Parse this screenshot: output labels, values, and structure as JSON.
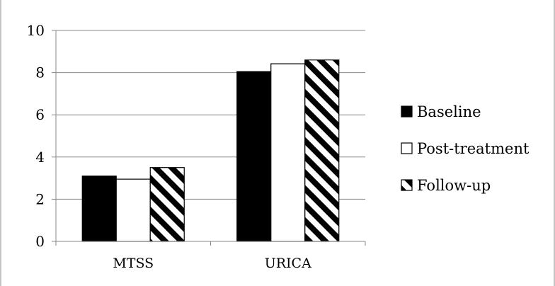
{
  "chart_data": {
    "type": "bar",
    "title": "",
    "xlabel": "",
    "ylabel": "",
    "categories": [
      "MTSS",
      "URICA"
    ],
    "series": [
      {
        "name": "Baseline",
        "values": [
          3.1,
          8.05
        ],
        "fill": "solid-black"
      },
      {
        "name": "Post-treatment",
        "values": [
          2.95,
          8.42
        ],
        "fill": "white"
      },
      {
        "name": "Follow-up",
        "values": [
          3.5,
          8.6
        ],
        "fill": "diagonal-stripes"
      }
    ],
    "ylim": [
      0,
      10
    ],
    "yticks": [
      "0",
      "2",
      "4",
      "6",
      "8",
      "10"
    ],
    "grid": true,
    "legend_position": "right",
    "colors": {
      "bar": "#000000",
      "background": "#ffffff",
      "grid": "#888888",
      "axis": "#888888"
    }
  }
}
